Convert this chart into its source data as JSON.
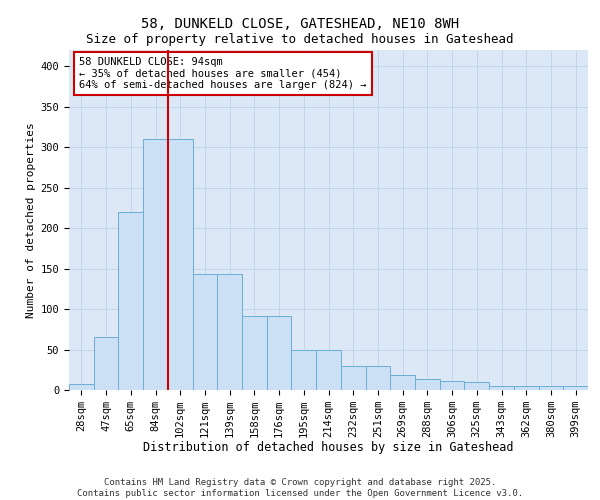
{
  "title_line1": "58, DUNKELD CLOSE, GATESHEAD, NE10 8WH",
  "title_line2": "Size of property relative to detached houses in Gateshead",
  "xlabel": "Distribution of detached houses by size in Gateshead",
  "ylabel": "Number of detached properties",
  "categories": [
    "28sqm",
    "47sqm",
    "65sqm",
    "84sqm",
    "102sqm",
    "121sqm",
    "139sqm",
    "158sqm",
    "176sqm",
    "195sqm",
    "214sqm",
    "232sqm",
    "251sqm",
    "269sqm",
    "288sqm",
    "306sqm",
    "325sqm",
    "343sqm",
    "362sqm",
    "380sqm",
    "399sqm"
  ],
  "bar_heights": [
    8,
    65,
    220,
    310,
    310,
    143,
    143,
    92,
    92,
    50,
    50,
    30,
    30,
    19,
    14,
    11,
    10,
    5,
    5,
    5,
    5
  ],
  "bar_color": "#cce0f5",
  "bar_edge_color": "#6aaed6",
  "vline_x_index": 3.5,
  "vline_color": "#cc0000",
  "annotation_text": "58 DUNKELD CLOSE: 94sqm\n← 35% of detached houses are smaller (454)\n64% of semi-detached houses are larger (824) →",
  "annotation_box_color": "#ffffff",
  "annotation_box_edge": "#cc0000",
  "ylim": [
    0,
    420
  ],
  "yticks": [
    0,
    50,
    100,
    150,
    200,
    250,
    300,
    350,
    400
  ],
  "background_color": "#dce8f5",
  "footer_text": "Contains HM Land Registry data © Crown copyright and database right 2025.\nContains public sector information licensed under the Open Government Licence v3.0.",
  "title_fontsize": 10,
  "subtitle_fontsize": 9,
  "xlabel_fontsize": 8.5,
  "ylabel_fontsize": 8,
  "tick_fontsize": 7.5,
  "footer_fontsize": 6.5,
  "annot_fontsize": 7.5
}
